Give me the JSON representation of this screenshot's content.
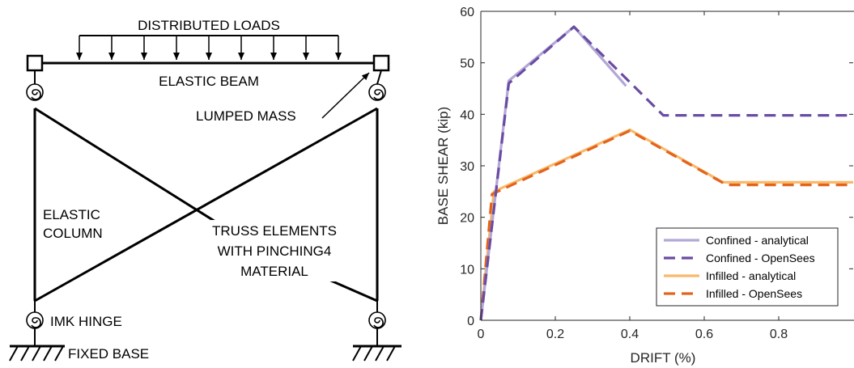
{
  "diagram": {
    "labels": {
      "distributed_loads": "DISTRIBUTED LOADS",
      "elastic_beam": "ELASTIC BEAM",
      "lumped_mass": "LUMPED MASS",
      "elastic_column_1": "ELASTIC",
      "elastic_column_2": "COLUMN",
      "truss_1": "TRUSS ELEMENTS",
      "truss_2": "WITH PINCHING4",
      "truss_3": "MATERIAL",
      "imk_hinge": "IMK HINGE",
      "fixed_base": "FIXED BASE"
    }
  },
  "chart_data": {
    "type": "line",
    "xlabel": "DRIFT (%)",
    "ylabel": "BASE SHEAR (kip)",
    "xlim": [
      0,
      1
    ],
    "ylim": [
      0,
      60
    ],
    "xticks": [
      "0",
      "0.2",
      "0.4",
      "0.6",
      "0.8"
    ],
    "yticks": [
      "0",
      "10",
      "20",
      "30",
      "40",
      "50",
      "60"
    ],
    "grid": false,
    "legend_position": "bottom-right",
    "series": [
      {
        "name": "Confined - analytical",
        "color": "#b3a7d6",
        "style": "solid",
        "x": [
          0,
          0.075,
          0.25,
          0.39
        ],
        "y": [
          0,
          46.5,
          57,
          45.5
        ]
      },
      {
        "name": "Confined - OpenSees",
        "color": "#6a4ca3",
        "style": "dashed",
        "x": [
          0,
          0.075,
          0.25,
          0.49,
          1.0
        ],
        "y": [
          0,
          46,
          57,
          39.8,
          39.8
        ]
      },
      {
        "name": "Infilled - analytical",
        "color": "#f8b96b",
        "style": "solid",
        "x": [
          0,
          0.035,
          0.4,
          0.65,
          1.0
        ],
        "y": [
          0,
          25,
          37,
          26.8,
          26.8
        ]
      },
      {
        "name": "Infilled - OpenSees",
        "color": "#e2641c",
        "style": "dashed",
        "x": [
          0,
          0.03,
          0.4,
          0.66,
          1.0
        ],
        "y": [
          0,
          24.5,
          36.8,
          26.3,
          26.3
        ]
      }
    ]
  }
}
